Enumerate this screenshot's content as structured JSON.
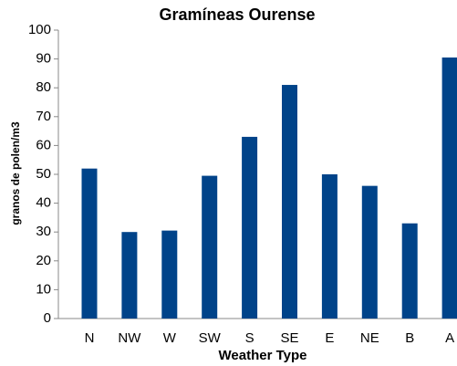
{
  "chart_data": {
    "type": "bar",
    "title": "Gramíneas Ourense",
    "x_label": "Weather Type",
    "y_label": "granos de polen/m3",
    "categories": [
      "N",
      "NW",
      "W",
      "SW",
      "S",
      "SE",
      "E",
      "NE",
      "B",
      "A"
    ],
    "values": [
      52,
      30,
      30.5,
      49.5,
      63,
      81,
      50,
      46,
      33,
      90.5
    ],
    "color": "#004389",
    "ylim": [
      0,
      100
    ],
    "yticks": [
      0,
      10,
      20,
      30,
      40,
      50,
      60,
      70,
      80,
      90,
      100
    ],
    "grid": false
  }
}
